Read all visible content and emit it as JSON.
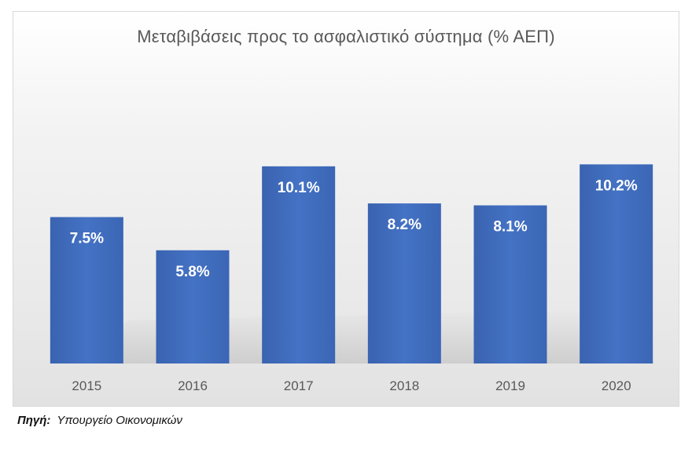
{
  "chart_data": {
    "type": "bar",
    "title": "Μεταβιβάσεις προς το ασφαλιστικό σύστημα (% ΑΕΠ)",
    "categories": [
      "2015",
      "2016",
      "2017",
      "2018",
      "2019",
      "2020"
    ],
    "values": [
      7.5,
      5.8,
      10.1,
      8.2,
      8.1,
      10.2
    ],
    "data_labels": [
      "7.5%",
      "5.8%",
      "10.1%",
      "8.2%",
      "8.1%",
      "10.2%"
    ],
    "xlabel": "",
    "ylabel": "",
    "ylim": [
      0,
      15
    ],
    "grid": false,
    "legend": "none",
    "bar_color": "#4472c4",
    "label_color": "#ffffff",
    "tick_color": "#595959"
  },
  "source": {
    "label": "Πηγή:",
    "text": "Υπουργείο Οικονομικών"
  }
}
